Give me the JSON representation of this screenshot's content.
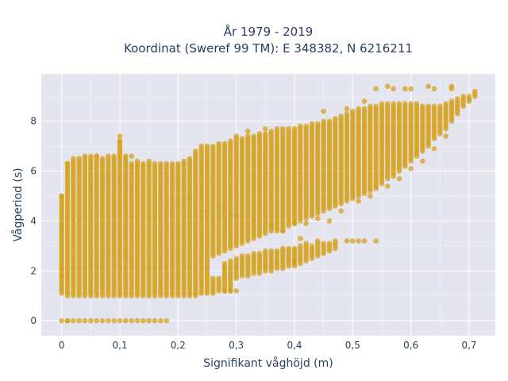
{
  "chart_data": {
    "type": "scatter",
    "title_line1": "År 1979 - 2019",
    "title_line2": "Koordinat (Sweref 99 TM): E 348382, N 6216211",
    "xlabel": "Signifikant våghöjd (m)",
    "ylabel": "Vågperiod (s)",
    "xlim": [
      -0.035,
      0.745
    ],
    "ylim": [
      -0.6,
      9.9
    ],
    "x_ticks": [
      0,
      0.1,
      0.2,
      0.3,
      0.4,
      0.5,
      0.6,
      0.7
    ],
    "x_tick_labels": [
      "0",
      "0,1",
      "0,2",
      "0,3",
      "0,4",
      "0,5",
      "0,6",
      "0,7"
    ],
    "y_ticks": [
      0,
      2,
      4,
      6,
      8
    ],
    "y_tick_labels": [
      "0",
      "2",
      "4",
      "6",
      "8"
    ],
    "grid": true,
    "colors": {
      "marker": "#d4a11e",
      "plot_bg": "#e5e5f0",
      "grid": "#ffffff",
      "text": "#2a3f5f"
    },
    "marker_opacity": 0.75,
    "columns": [
      {
        "x": 0.0,
        "segments": [
          [
            0,
            0
          ],
          [
            1.2,
            5.0
          ]
        ]
      },
      {
        "x": 0.01,
        "segments": [
          [
            0,
            0
          ],
          [
            1.0,
            6.3
          ]
        ]
      },
      {
        "x": 0.02,
        "segments": [
          [
            0,
            0
          ],
          [
            1.0,
            6.5
          ]
        ]
      },
      {
        "x": 0.03,
        "segments": [
          [
            0,
            0
          ],
          [
            1.0,
            6.5
          ]
        ]
      },
      {
        "x": 0.04,
        "segments": [
          [
            0,
            0
          ],
          [
            1.0,
            6.6
          ]
        ]
      },
      {
        "x": 0.05,
        "segments": [
          [
            0,
            0
          ],
          [
            1.0,
            6.6
          ]
        ]
      },
      {
        "x": 0.06,
        "segments": [
          [
            0,
            0
          ],
          [
            1.0,
            6.6
          ]
        ]
      },
      {
        "x": 0.07,
        "segments": [
          [
            0,
            0
          ],
          [
            1.0,
            6.5
          ]
        ]
      },
      {
        "x": 0.08,
        "segments": [
          [
            0,
            0
          ],
          [
            1.0,
            6.5
          ]
        ]
      },
      {
        "x": 0.09,
        "segments": [
          [
            0,
            0
          ],
          [
            1.0,
            6.6
          ]
        ]
      },
      {
        "x": 0.1,
        "segments": [
          [
            0,
            0
          ],
          [
            1.0,
            7.2
          ]
        ]
      },
      {
        "x": 0.11,
        "segments": [
          [
            0,
            0
          ],
          [
            1.0,
            6.6
          ]
        ]
      },
      {
        "x": 0.12,
        "segments": [
          [
            0,
            0
          ],
          [
            1.0,
            6.3
          ]
        ]
      },
      {
        "x": 0.13,
        "segments": [
          [
            0,
            0
          ],
          [
            1.0,
            6.4
          ]
        ]
      },
      {
        "x": 0.14,
        "segments": [
          [
            0,
            0
          ],
          [
            1.0,
            6.3
          ]
        ]
      },
      {
        "x": 0.15,
        "segments": [
          [
            0,
            0
          ],
          [
            1.0,
            6.4
          ]
        ]
      },
      {
        "x": 0.16,
        "segments": [
          [
            0,
            0
          ],
          [
            1.0,
            6.3
          ]
        ]
      },
      {
        "x": 0.17,
        "segments": [
          [
            0,
            0
          ],
          [
            1.0,
            6.3
          ]
        ]
      },
      {
        "x": 0.18,
        "segments": [
          [
            0,
            0
          ],
          [
            1.0,
            6.3
          ]
        ]
      },
      {
        "x": 0.19,
        "segments": [
          [
            1.0,
            6.3
          ]
        ]
      },
      {
        "x": 0.2,
        "segments": [
          [
            1.0,
            6.3
          ]
        ]
      },
      {
        "x": 0.21,
        "segments": [
          [
            1.0,
            6.4
          ]
        ]
      },
      {
        "x": 0.22,
        "segments": [
          [
            1.0,
            6.5
          ]
        ]
      },
      {
        "x": 0.23,
        "segments": [
          [
            1.0,
            6.7
          ]
        ]
      },
      {
        "x": 0.24,
        "segments": [
          [
            1.1,
            6.9
          ]
        ]
      },
      {
        "x": 0.25,
        "segments": [
          [
            1.1,
            7.0
          ]
        ]
      },
      {
        "x": 0.26,
        "segments": [
          [
            1.1,
            1.7
          ],
          [
            2.6,
            7.0
          ]
        ]
      },
      {
        "x": 0.27,
        "segments": [
          [
            1.2,
            1.7
          ],
          [
            2.7,
            7.1
          ]
        ]
      },
      {
        "x": 0.28,
        "segments": [
          [
            1.2,
            2.3
          ],
          [
            2.8,
            7.1
          ]
        ]
      },
      {
        "x": 0.29,
        "segments": [
          [
            1.2,
            2.4
          ],
          [
            2.9,
            7.2
          ]
        ]
      },
      {
        "x": 0.3,
        "segments": [
          [
            1.7,
            2.5
          ],
          [
            3.0,
            7.3
          ]
        ]
      },
      {
        "x": 0.31,
        "segments": [
          [
            1.8,
            2.6
          ],
          [
            3.1,
            7.3
          ]
        ]
      },
      {
        "x": 0.32,
        "segments": [
          [
            1.8,
            2.6
          ],
          [
            3.2,
            7.4
          ]
        ]
      },
      {
        "x": 0.33,
        "segments": [
          [
            1.9,
            2.7
          ],
          [
            3.3,
            7.4
          ]
        ]
      },
      {
        "x": 0.34,
        "segments": [
          [
            1.9,
            2.7
          ],
          [
            3.4,
            7.5
          ]
        ]
      },
      {
        "x": 0.35,
        "segments": [
          [
            2.0,
            2.8
          ],
          [
            3.5,
            7.5
          ]
        ]
      },
      {
        "x": 0.36,
        "segments": [
          [
            2.0,
            2.8
          ],
          [
            3.6,
            7.6
          ]
        ]
      },
      {
        "x": 0.37,
        "segments": [
          [
            2.1,
            2.8
          ],
          [
            3.6,
            7.6
          ]
        ]
      },
      {
        "x": 0.38,
        "segments": [
          [
            2.1,
            2.9
          ],
          [
            3.7,
            7.7
          ]
        ]
      },
      {
        "x": 0.39,
        "segments": [
          [
            2.2,
            2.9
          ],
          [
            3.8,
            7.7
          ]
        ]
      },
      {
        "x": 0.4,
        "segments": [
          [
            2.2,
            2.9
          ],
          [
            3.9,
            7.7
          ]
        ]
      },
      {
        "x": 0.41,
        "segments": [
          [
            2.3,
            3.0
          ],
          [
            4.0,
            7.8
          ]
        ]
      },
      {
        "x": 0.42,
        "segments": [
          [
            2.4,
            3.0
          ],
          [
            4.1,
            7.8
          ]
        ]
      },
      {
        "x": 0.43,
        "segments": [
          [
            2.5,
            3.0
          ],
          [
            4.2,
            7.9
          ]
        ]
      },
      {
        "x": 0.44,
        "segments": [
          [
            2.6,
            3.1
          ],
          [
            4.3,
            7.9
          ]
        ]
      },
      {
        "x": 0.45,
        "segments": [
          [
            2.7,
            3.1
          ],
          [
            4.4,
            8.0
          ]
        ]
      },
      {
        "x": 0.46,
        "segments": [
          [
            2.8,
            3.1
          ],
          [
            4.5,
            8.0
          ]
        ]
      },
      {
        "x": 0.47,
        "segments": [
          [
            2.9,
            3.2
          ],
          [
            4.6,
            8.1
          ]
        ]
      },
      {
        "x": 0.48,
        "segments": [
          [
            4.7,
            8.2
          ]
        ]
      },
      {
        "x": 0.49,
        "segments": [
          [
            4.8,
            8.3
          ]
        ]
      },
      {
        "x": 0.5,
        "segments": [
          [
            4.9,
            8.4
          ]
        ]
      },
      {
        "x": 0.51,
        "segments": [
          [
            5.0,
            8.5
          ]
        ]
      },
      {
        "x": 0.52,
        "segments": [
          [
            5.1,
            8.5
          ]
        ]
      },
      {
        "x": 0.53,
        "segments": [
          [
            5.2,
            8.6
          ]
        ]
      },
      {
        "x": 0.54,
        "segments": [
          [
            5.3,
            8.6
          ]
        ]
      },
      {
        "x": 0.55,
        "segments": [
          [
            5.5,
            8.7
          ]
        ]
      },
      {
        "x": 0.56,
        "segments": [
          [
            5.7,
            8.7
          ]
        ]
      },
      {
        "x": 0.57,
        "segments": [
          [
            5.8,
            8.7
          ]
        ]
      },
      {
        "x": 0.58,
        "segments": [
          [
            6.0,
            8.7
          ]
        ]
      },
      {
        "x": 0.59,
        "segments": [
          [
            6.2,
            8.7
          ]
        ]
      },
      {
        "x": 0.6,
        "segments": [
          [
            6.4,
            8.7
          ]
        ]
      },
      {
        "x": 0.61,
        "segments": [
          [
            6.6,
            8.7
          ]
        ]
      },
      {
        "x": 0.62,
        "segments": [
          [
            6.8,
            8.6
          ]
        ]
      },
      {
        "x": 0.63,
        "segments": [
          [
            7.0,
            8.6
          ]
        ]
      },
      {
        "x": 0.64,
        "segments": [
          [
            7.3,
            8.6
          ]
        ]
      },
      {
        "x": 0.65,
        "segments": [
          [
            7.5,
            8.6
          ]
        ]
      },
      {
        "x": 0.66,
        "segments": [
          [
            7.7,
            8.7
          ]
        ]
      },
      {
        "x": 0.67,
        "segments": [
          [
            8.0,
            8.8
          ]
        ]
      },
      {
        "x": 0.68,
        "segments": [
          [
            8.3,
            8.9
          ]
        ]
      },
      {
        "x": 0.69,
        "segments": [
          [
            8.6,
            9.0
          ]
        ]
      },
      {
        "x": 0.7,
        "segments": [
          [
            8.8,
            9.0
          ]
        ]
      },
      {
        "x": 0.71,
        "segments": [
          [
            9.0,
            9.2
          ]
        ]
      }
    ],
    "scattered_points": [
      [
        0.0,
        2.1
      ],
      [
        0.0,
        1.8
      ],
      [
        0.0,
        1.1
      ],
      [
        0.0,
        3.7
      ],
      [
        0.0,
        5.0
      ],
      [
        0.01,
        6.3
      ],
      [
        0.01,
        0.0
      ],
      [
        0.1,
        7.4
      ],
      [
        0.1,
        7.2
      ],
      [
        0.12,
        6.6
      ],
      [
        0.08,
        6.6
      ],
      [
        0.06,
        6.6
      ],
      [
        0.23,
        6.8
      ],
      [
        0.24,
        7.0
      ],
      [
        0.3,
        7.4
      ],
      [
        0.32,
        7.6
      ],
      [
        0.35,
        7.7
      ],
      [
        0.37,
        7.7
      ],
      [
        0.3,
        1.2
      ],
      [
        0.28,
        1.2
      ],
      [
        0.29,
        1.2
      ],
      [
        0.22,
        4.9
      ],
      [
        0.25,
        4.4
      ],
      [
        0.28,
        4.5
      ],
      [
        0.3,
        4.2
      ],
      [
        0.33,
        4.0
      ],
      [
        0.36,
        3.8
      ],
      [
        0.38,
        3.6
      ],
      [
        0.4,
        3.9
      ],
      [
        0.42,
        3.9
      ],
      [
        0.44,
        4.1
      ],
      [
        0.46,
        4.0
      ],
      [
        0.48,
        4.4
      ],
      [
        0.51,
        4.8
      ],
      [
        0.53,
        5.0
      ],
      [
        0.56,
        5.4
      ],
      [
        0.58,
        5.7
      ],
      [
        0.6,
        6.1
      ],
      [
        0.62,
        6.4
      ],
      [
        0.64,
        6.9
      ],
      [
        0.66,
        7.4
      ],
      [
        0.45,
        8.4
      ],
      [
        0.49,
        8.5
      ],
      [
        0.52,
        8.8
      ],
      [
        0.54,
        9.3
      ],
      [
        0.56,
        9.4
      ],
      [
        0.57,
        9.3
      ],
      [
        0.59,
        9.3
      ],
      [
        0.6,
        9.3
      ],
      [
        0.63,
        9.4
      ],
      [
        0.64,
        9.3
      ],
      [
        0.67,
        9.3
      ],
      [
        0.67,
        9.4
      ],
      [
        0.49,
        3.2
      ],
      [
        0.5,
        3.2
      ],
      [
        0.51,
        3.2
      ],
      [
        0.52,
        3.2
      ],
      [
        0.54,
        3.2
      ],
      [
        0.42,
        3.1
      ],
      [
        0.44,
        3.2
      ],
      [
        0.38,
        3.6
      ],
      [
        0.41,
        3.3
      ],
      [
        0.35,
        2.2
      ],
      [
        0.37,
        2.3
      ],
      [
        0.4,
        2.4
      ]
    ]
  }
}
